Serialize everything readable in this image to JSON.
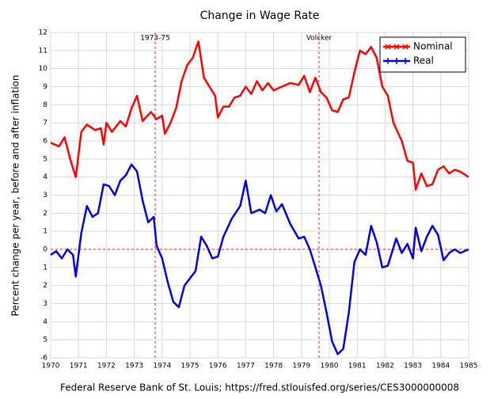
{
  "chart_data": {
    "type": "line",
    "title": "Change in Wage Rate",
    "ylabel": "Percent change per year, before and after inflation",
    "caption": "Federal Reserve Bank of St. Louis; https://fred.stlouisfed.org/series/CES3000000008",
    "xlim": [
      1970,
      1985
    ],
    "xticks": [
      1970,
      1971,
      1972,
      1973,
      1974,
      1975,
      1976,
      1977,
      1978,
      1979,
      1980,
      1981,
      1982,
      1983,
      1984,
      1985
    ],
    "ylim": [
      -6,
      12
    ],
    "yticks": [
      12,
      11,
      10,
      9,
      8,
      7,
      6,
      5,
      4,
      3,
      2,
      1,
      0,
      {
        "value": -1,
        "label": "1"
      },
      {
        "value": -2,
        "label": "2"
      },
      {
        "value": -3,
        "label": "3"
      },
      {
        "value": -4,
        "label": "4"
      },
      {
        "value": -5,
        "label": "5"
      },
      -6
    ],
    "grid": true,
    "legend": "top-right",
    "reference_line": {
      "y": 0,
      "color": "#e02020"
    },
    "annotations": [
      {
        "label": "1973-75",
        "x": 1973.75
      },
      {
        "label": "Volcker",
        "x": 1979.63
      }
    ],
    "series": [
      {
        "name": "Nominal",
        "color": "#ff0000",
        "x": [
          1970.0,
          1970.3,
          1970.5,
          1970.7,
          1970.9,
          1971.1,
          1971.3,
          1971.6,
          1971.8,
          1971.9,
          1972.0,
          1972.2,
          1972.5,
          1972.7,
          1972.9,
          1973.1,
          1973.3,
          1973.6,
          1973.8,
          1974.0,
          1974.1,
          1974.3,
          1974.5,
          1974.7,
          1974.9,
          1975.1,
          1975.3,
          1975.5,
          1975.7,
          1975.9,
          1976.0,
          1976.2,
          1976.4,
          1976.6,
          1976.8,
          1977.0,
          1977.2,
          1977.4,
          1977.6,
          1977.8,
          1978.0,
          1978.3,
          1978.6,
          1978.9,
          1979.1,
          1979.3,
          1979.5,
          1979.7,
          1979.9,
          1980.1,
          1980.3,
          1980.5,
          1980.7,
          1980.9,
          1981.1,
          1981.3,
          1981.5,
          1981.7,
          1981.9,
          1982.1,
          1982.3,
          1982.6,
          1982.8,
          1983.0,
          1983.1,
          1983.3,
          1983.5,
          1983.7,
          1983.9,
          1984.1,
          1984.3,
          1984.5,
          1984.7,
          1985.0
        ],
        "values": [
          5.9,
          5.7,
          6.2,
          5.0,
          4.0,
          6.5,
          6.9,
          6.6,
          6.7,
          5.8,
          7.0,
          6.5,
          7.1,
          6.8,
          7.8,
          8.5,
          7.1,
          7.6,
          7.2,
          7.4,
          6.4,
          7.0,
          7.8,
          9.3,
          10.2,
          10.6,
          11.5,
          9.5,
          9.0,
          8.5,
          7.3,
          7.9,
          7.9,
          8.4,
          8.5,
          9.0,
          8.6,
          9.3,
          8.8,
          9.2,
          8.8,
          9.0,
          9.2,
          9.1,
          9.6,
          8.7,
          9.5,
          8.7,
          8.4,
          7.7,
          7.6,
          8.3,
          8.4,
          9.8,
          11.0,
          10.8,
          11.2,
          10.6,
          9.0,
          8.5,
          7.0,
          6.0,
          4.9,
          4.8,
          3.3,
          4.2,
          3.5,
          3.6,
          4.4,
          4.6,
          4.2,
          4.4,
          4.3,
          4.0
        ]
      },
      {
        "name": "Real",
        "color": "#0000dd",
        "x": [
          1970.0,
          1970.2,
          1970.4,
          1970.6,
          1970.8,
          1970.9,
          1971.1,
          1971.3,
          1971.5,
          1971.7,
          1971.9,
          1972.1,
          1972.3,
          1972.5,
          1972.7,
          1972.9,
          1973.1,
          1973.3,
          1973.5,
          1973.7,
          1973.8,
          1974.0,
          1974.2,
          1974.4,
          1974.6,
          1974.8,
          1975.0,
          1975.2,
          1975.4,
          1975.6,
          1975.8,
          1976.0,
          1976.2,
          1976.5,
          1976.8,
          1977.0,
          1977.2,
          1977.5,
          1977.7,
          1977.9,
          1978.1,
          1978.3,
          1978.6,
          1978.9,
          1979.1,
          1979.3,
          1979.5,
          1979.7,
          1979.9,
          1980.1,
          1980.3,
          1980.5,
          1980.7,
          1980.9,
          1981.1,
          1981.3,
          1981.5,
          1981.7,
          1981.9,
          1982.1,
          1982.4,
          1982.6,
          1982.8,
          1983.0,
          1983.1,
          1983.3,
          1983.5,
          1983.7,
          1983.9,
          1984.1,
          1984.3,
          1984.5,
          1984.7,
          1985.0
        ],
        "values": [
          -0.3,
          -0.1,
          -0.5,
          0.0,
          -0.3,
          -1.5,
          0.9,
          2.4,
          1.8,
          2.0,
          3.6,
          3.5,
          3.0,
          3.8,
          4.1,
          4.7,
          4.3,
          2.7,
          1.5,
          1.8,
          0.2,
          -0.5,
          -1.8,
          -2.9,
          -3.2,
          -2.0,
          -1.6,
          -1.2,
          0.7,
          0.2,
          -0.5,
          -0.4,
          0.7,
          1.7,
          2.4,
          3.8,
          2.0,
          2.2,
          2.0,
          3.0,
          2.1,
          2.5,
          1.4,
          0.6,
          0.7,
          0.0,
          -1.0,
          -2.0,
          -3.5,
          -5.1,
          -5.8,
          -5.5,
          -3.5,
          -0.7,
          0.0,
          -0.3,
          1.3,
          0.4,
          -1.0,
          -0.9,
          0.6,
          -0.2,
          0.3,
          -0.5,
          1.2,
          -0.1,
          0.7,
          1.3,
          0.8,
          -0.6,
          -0.2,
          0.0,
          -0.2,
          0.0
        ]
      }
    ]
  }
}
